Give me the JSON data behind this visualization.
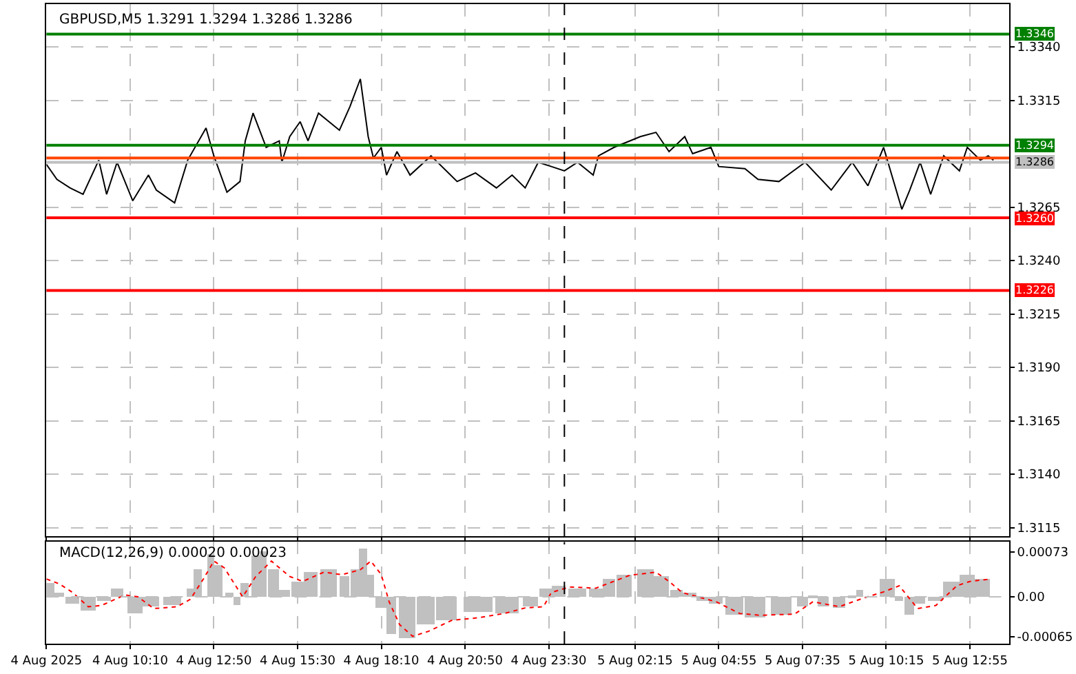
{
  "chart_data": [
    {
      "type": "line",
      "title": "GBPUSD,M5 1.3291 1.3294 1.3286 1.3286",
      "x": [
        "2025-08-04T07:30",
        "2025-08-04T07:50",
        "2025-08-04T08:15",
        "2025-08-04T08:40",
        "2025-08-04T09:10",
        "2025-08-04T09:25",
        "2025-08-04T09:45",
        "2025-08-04T10:15",
        "2025-08-04T10:45",
        "2025-08-04T11:00",
        "2025-08-04T11:35",
        "2025-08-04T12:00",
        "2025-08-04T12:35",
        "2025-08-04T12:50",
        "2025-08-04T13:15",
        "2025-08-04T13:40",
        "2025-08-04T13:50",
        "2025-08-04T14:05",
        "2025-08-04T14:30",
        "2025-08-04T14:55",
        "2025-08-04T15:00",
        "2025-08-04T15:15",
        "2025-08-04T15:35",
        "2025-08-04T15:50",
        "2025-08-04T16:10",
        "2025-08-04T16:50",
        "2025-08-04T17:10",
        "2025-08-04T17:30",
        "2025-08-04T17:45",
        "2025-08-04T17:55",
        "2025-08-04T18:10",
        "2025-08-04T18:20",
        "2025-08-04T18:40",
        "2025-08-04T19:05",
        "2025-08-04T19:45",
        "2025-08-04T20:35",
        "2025-08-04T21:10",
        "2025-08-04T21:50",
        "2025-08-04T22:20",
        "2025-08-04T22:45",
        "2025-08-04T23:10",
        "2025-08-04T23:35",
        "2025-08-05T00:00",
        "2025-08-05T00:25",
        "2025-08-05T00:55",
        "2025-08-05T01:05",
        "2025-08-05T01:35",
        "2025-08-05T02:05",
        "2025-08-05T02:25",
        "2025-08-05T02:55",
        "2025-08-05T03:20",
        "2025-08-05T03:50",
        "2025-08-05T04:05",
        "2025-08-05T04:40",
        "2025-08-05T04:55",
        "2025-08-05T05:45",
        "2025-08-05T06:10",
        "2025-08-05T06:50",
        "2025-08-05T07:40",
        "2025-08-05T08:30",
        "2025-08-05T09:10",
        "2025-08-05T09:40",
        "2025-08-05T10:10",
        "2025-08-05T10:45",
        "2025-08-05T11:00",
        "2025-08-05T11:20",
        "2025-08-05T11:40",
        "2025-08-05T12:05",
        "2025-08-05T12:35",
        "2025-08-05T12:50",
        "2025-08-05T13:15",
        "2025-08-05T13:30",
        "2025-08-05T13:40"
      ],
      "series": [
        {
          "color": "#000000",
          "values": [
            1.3285,
            1.3278,
            1.3274,
            1.3271,
            1.3287,
            1.3271,
            1.3286,
            1.3268,
            1.328,
            1.3273,
            1.3267,
            1.3287,
            1.3302,
            1.3289,
            1.3272,
            1.3277,
            1.3296,
            1.3309,
            1.3293,
            1.3296,
            1.3286,
            1.3298,
            1.3305,
            1.3296,
            1.3309,
            1.3301,
            1.3312,
            1.3325,
            1.3298,
            1.3288,
            1.3293,
            1.328,
            1.3291,
            1.328,
            1.3289,
            1.3277,
            1.3281,
            1.3274,
            1.328,
            1.3274,
            1.3286,
            1.3284,
            1.3282,
            1.3286,
            1.328,
            1.3289,
            1.3293,
            1.3296,
            1.3298,
            1.33,
            1.3291,
            1.3298,
            1.329,
            1.3293,
            1.3284,
            1.3283,
            1.3278,
            1.3277,
            1.3286,
            1.3273,
            1.3286,
            1.3275,
            1.3293,
            1.3264,
            1.3273,
            1.3286,
            1.3271,
            1.3289,
            1.3282,
            1.3293,
            1.3287,
            1.3289,
            1.3287
          ]
        }
      ],
      "xlim": [
        "2025-08-04T07:30",
        "2025-08-05T14:10"
      ],
      "xticks": [
        {
          "value": "2025-08-04T07:30",
          "label": null
        },
        {
          "value": "2025-08-04T10:10",
          "label": null
        },
        {
          "value": "2025-08-04T12:50",
          "label": null
        },
        {
          "value": "2025-08-04T15:30",
          "label": null
        },
        {
          "value": "2025-08-04T18:10",
          "label": null
        },
        {
          "value": "2025-08-04T20:50",
          "label": null
        },
        {
          "value": "2025-08-04T23:30",
          "label": null
        },
        {
          "value": "2025-08-05T02:15",
          "label": null
        },
        {
          "value": "2025-08-05T04:55",
          "label": null
        },
        {
          "value": "2025-08-05T07:35",
          "label": null
        },
        {
          "value": "2025-08-05T10:15",
          "label": null
        },
        {
          "value": "2025-08-05T12:55",
          "label": null
        }
      ],
      "ylim": [
        1.3111,
        1.336
      ],
      "yticks": [
        {
          "value": 1.334,
          "label": "1.3340"
        },
        {
          "value": 1.3315,
          "label": "1.3315"
        },
        {
          "value": 1.3265,
          "label": "1.3265"
        },
        {
          "value": 1.324,
          "label": "1.3240"
        },
        {
          "value": 1.3215,
          "label": "1.3215"
        },
        {
          "value": 1.319,
          "label": "1.3190"
        },
        {
          "value": 1.3165,
          "label": "1.3165"
        },
        {
          "value": 1.314,
          "label": "1.3140"
        },
        {
          "value": 1.3115,
          "label": "1.3115"
        }
      ],
      "tick_labels": "y",
      "grid": true,
      "line_style": "solid",
      "marker": "none",
      "ref_lines": [
        {
          "axis": "y",
          "value": 1.3346,
          "label": "1.3346",
          "color": "#008000"
        },
        {
          "axis": "y",
          "value": 1.3294,
          "label": "1.3294",
          "color": "#008000"
        },
        {
          "axis": "y",
          "value": 1.3288,
          "label": null,
          "color": "#ff4500"
        },
        {
          "axis": "y",
          "value": 1.3286,
          "label": "1.3286",
          "color": "#c0c0c0"
        },
        {
          "axis": "y",
          "value": 1.326,
          "label": "1.3260",
          "color": "#ff0000"
        },
        {
          "axis": "y",
          "value": 1.3226,
          "label": "1.3226",
          "color": "#ff0000"
        },
        {
          "axis": "x",
          "value": "2025-08-05T00:00",
          "label": null,
          "color": "#000000",
          "line_style": "dashed"
        }
      ]
    },
    {
      "type": "bar",
      "title": "MACD(12,26,9) 0.00020 0.00023",
      "series": [
        {
          "type": "bar",
          "color": "#c0c0c0",
          "x": [
            "2025-08-04T07:35",
            "2025-08-04T07:55",
            "2025-08-04T08:20",
            "2025-08-04T08:50",
            "2025-08-04T09:20",
            "2025-08-04T09:45",
            "2025-08-04T10:20",
            "2025-08-04T10:50",
            "2025-08-04T11:30",
            "2025-08-04T12:05",
            "2025-08-04T12:20",
            "2025-08-04T12:45",
            "2025-08-04T13:00",
            "2025-08-04T13:20",
            "2025-08-04T13:35",
            "2025-08-04T13:50",
            "2025-08-04T14:10",
            "2025-08-04T14:25",
            "2025-08-04T14:45",
            "2025-08-04T15:05",
            "2025-08-04T15:30",
            "2025-08-04T15:55",
            "2025-08-04T16:30",
            "2025-08-04T17:00",
            "2025-08-04T17:20",
            "2025-08-04T17:35",
            "2025-08-04T17:50",
            "2025-08-04T18:10",
            "2025-08-04T18:30",
            "2025-08-04T19:00",
            "2025-08-04T19:35",
            "2025-08-04T20:15",
            "2025-08-04T21:15",
            "2025-08-04T22:10",
            "2025-08-04T22:55",
            "2025-08-04T23:25",
            "2025-08-04T23:50",
            "2025-08-05T00:25",
            "2025-08-05T01:00",
            "2025-08-05T01:25",
            "2025-08-05T01:55",
            "2025-08-05T02:35",
            "2025-08-05T03:05",
            "2025-08-05T03:35",
            "2025-08-05T04:00",
            "2025-08-05T04:25",
            "2025-08-05T04:50",
            "2025-08-05T05:25",
            "2025-08-05T06:05",
            "2025-08-05T06:55",
            "2025-08-05T07:35",
            "2025-08-05T07:55",
            "2025-08-05T08:15",
            "2025-08-05T08:45",
            "2025-08-05T09:10",
            "2025-08-05T09:25",
            "2025-08-05T09:50",
            "2025-08-05T10:10",
            "2025-08-05T10:25",
            "2025-08-05T10:40",
            "2025-08-05T11:00",
            "2025-08-05T11:20",
            "2025-08-05T11:50",
            "2025-08-05T12:20",
            "2025-08-05T12:50",
            "2025-08-05T13:20"
          ],
          "values": [
            0.00021,
            7e-05,
            -0.00012,
            -0.00023,
            -8e-05,
            0.00014,
            -0.00027,
            -0.00016,
            -0.00014,
            0.00014,
            0.00044,
            0.0007,
            0.00051,
            7e-05,
            -0.00014,
            0.00021,
            0.00066,
            0.00073,
            0.00044,
            0.0001,
            0.00025,
            0.0004,
            0.00044,
            0.00033,
            0.00044,
            0.00077,
            0.00036,
            -0.00019,
            -0.0006,
            -0.00067,
            -0.00045,
            -0.00038,
            -0.00025,
            -0.00027,
            -0.00017,
            0.00014,
            0.00018,
            0.00014,
            0.00014,
            0.00029,
            0.00036,
            0.00044,
            0.00033,
            0.0001,
            7e-05,
            -7e-05,
            -0.00012,
            -0.0003,
            -0.00034,
            -0.0003,
            -0.00016,
            -2e-05,
            -0.00016,
            -0.00018,
            -2e-05,
            0.0001,
            0.0,
            0.00029,
            0.00029,
            -8e-05,
            -0.0003,
            -0.00012,
            -8e-05,
            0.00025,
            0.00036,
            0.00029
          ]
        },
        {
          "type": "line",
          "color": "#ff0000",
          "line_style": "dotted",
          "x": [
            "2025-08-04T07:30",
            "2025-08-04T07:55",
            "2025-08-04T08:20",
            "2025-08-04T08:50",
            "2025-08-04T09:15",
            "2025-08-04T10:00",
            "2025-08-04T10:25",
            "2025-08-04T10:55",
            "2025-08-04T11:40",
            "2025-08-04T12:05",
            "2025-08-04T12:30",
            "2025-08-04T12:50",
            "2025-08-04T13:10",
            "2025-08-04T13:45",
            "2025-08-04T14:10",
            "2025-08-04T14:40",
            "2025-08-04T15:15",
            "2025-08-04T15:40",
            "2025-08-04T16:20",
            "2025-08-04T16:55",
            "2025-08-04T17:30",
            "2025-08-04T17:50",
            "2025-08-04T18:10",
            "2025-08-04T18:25",
            "2025-08-04T18:45",
            "2025-08-04T19:10",
            "2025-08-04T19:40",
            "2025-08-04T20:25",
            "2025-08-04T21:15",
            "2025-08-04T22:05",
            "2025-08-04T22:45",
            "2025-08-04T23:20",
            "2025-08-04T23:35",
            "2025-08-05T00:10",
            "2025-08-05T01:00",
            "2025-08-05T02:05",
            "2025-08-05T02:55",
            "2025-08-05T03:20",
            "2025-08-05T03:45",
            "2025-08-05T04:20",
            "2025-08-05T04:50",
            "2025-08-05T05:35",
            "2025-08-05T06:15",
            "2025-08-05T07:20",
            "2025-08-05T07:55",
            "2025-08-05T08:45",
            "2025-08-05T09:35",
            "2025-08-05T10:10",
            "2025-08-05T10:40",
            "2025-08-05T11:15",
            "2025-08-05T11:50",
            "2025-08-05T12:30",
            "2025-08-05T12:55",
            "2025-08-05T13:35"
          ],
          "values": [
            0.00029,
            0.00021,
            7e-05,
            -0.00016,
            -0.00014,
            3e-05,
            0.0,
            -0.00019,
            -0.00016,
            -4e-05,
            0.00029,
            0.00058,
            0.00047,
            0.0,
            0.00033,
            0.00058,
            0.00033,
            0.00025,
            0.0004,
            0.00036,
            0.00044,
            0.00058,
            0.00036,
            -8e-05,
            -0.00045,
            -0.00064,
            -0.00056,
            -0.00038,
            -0.00034,
            -0.00027,
            -0.00018,
            -0.00016,
            7e-05,
            0.00016,
            0.00014,
            0.00035,
            0.0004,
            0.00025,
            7e-05,
            -1e-05,
            -8e-05,
            -0.00027,
            -0.0003,
            -0.00028,
            -8e-05,
            -0.00016,
            -1e-05,
            8e-05,
            0.00018,
            -0.00019,
            -0.00014,
            0.00018,
            0.00025,
            0.00029
          ]
        }
      ],
      "xlim": [
        "2025-08-04T07:30",
        "2025-08-05T14:10"
      ],
      "xticks": [
        {
          "value": "2025-08-04T07:30",
          "label": "4 Aug 2025"
        },
        {
          "value": "2025-08-04T10:10",
          "label": "4 Aug 10:10"
        },
        {
          "value": "2025-08-04T12:50",
          "label": "4 Aug 12:50"
        },
        {
          "value": "2025-08-04T15:30",
          "label": "4 Aug 15:30"
        },
        {
          "value": "2025-08-04T18:10",
          "label": "4 Aug 18:10"
        },
        {
          "value": "2025-08-04T20:50",
          "label": "4 Aug 20:50"
        },
        {
          "value": "2025-08-04T23:30",
          "label": "4 Aug 23:30"
        },
        {
          "value": "2025-08-05T02:15",
          "label": "5 Aug 02:15"
        },
        {
          "value": "2025-08-05T04:55",
          "label": "5 Aug 04:55"
        },
        {
          "value": "2025-08-05T07:35",
          "label": "5 Aug 07:35"
        },
        {
          "value": "2025-08-05T10:15",
          "label": "5 Aug 10:15"
        },
        {
          "value": "2025-08-05T12:55",
          "label": "5 Aug 12:55"
        }
      ],
      "ylim": [
        -0.00076,
        0.00089
      ],
      "yticks": [
        {
          "value": 0.00073,
          "label": "0.00073"
        },
        {
          "value": 0,
          "label": "0.00"
        },
        {
          "value": -0.00065,
          "label": "-0.00065"
        }
      ],
      "grid": "x",
      "ref_lines": [
        {
          "axis": "y",
          "value": 0,
          "label": null,
          "color": "#c0c0c0",
          "line_style": "dashed"
        },
        {
          "axis": "x",
          "value": "2025-08-05T00:00",
          "label": null,
          "color": "#000000",
          "line_style": "dashed"
        }
      ]
    }
  ]
}
